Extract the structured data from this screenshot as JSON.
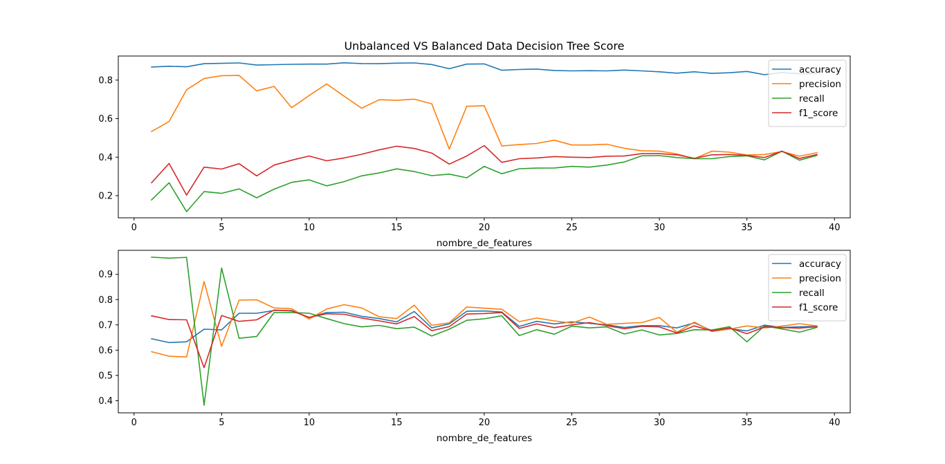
{
  "colors": {
    "accuracy": "#1f77b4",
    "precision": "#ff7f0e",
    "recall": "#2ca02c",
    "f1_score": "#d62728"
  },
  "chart_data": [
    {
      "type": "line",
      "title": "Unbalanced VS Balanced Data Decision Tree Score",
      "xlabel": "nombre_de_features",
      "ylabel": "",
      "xlim": [
        -0.9,
        40.9
      ],
      "ylim": [
        0.085,
        0.925
      ],
      "xticks": [
        0,
        5,
        10,
        15,
        20,
        25,
        30,
        35,
        40
      ],
      "yticks": [
        0.2,
        0.4,
        0.6,
        0.8
      ],
      "ytick_labels": [
        "0.2",
        "0.4",
        "0.6",
        "0.8"
      ],
      "legend_position": "upper right",
      "x": [
        1,
        2,
        3,
        4,
        5,
        6,
        7,
        8,
        9,
        10,
        11,
        12,
        13,
        14,
        15,
        16,
        17,
        18,
        19,
        20,
        21,
        22,
        23,
        24,
        25,
        26,
        27,
        28,
        29,
        30,
        31,
        32,
        33,
        34,
        35,
        36,
        37,
        38,
        39
      ],
      "series": [
        {
          "name": "accuracy",
          "color_key": "accuracy",
          "values": [
            0.868,
            0.872,
            0.869,
            0.885,
            0.887,
            0.889,
            0.878,
            0.88,
            0.882,
            0.883,
            0.883,
            0.89,
            0.886,
            0.885,
            0.888,
            0.889,
            0.881,
            0.859,
            0.883,
            0.884,
            0.851,
            0.855,
            0.857,
            0.85,
            0.848,
            0.849,
            0.848,
            0.852,
            0.848,
            0.843,
            0.836,
            0.843,
            0.835,
            0.838,
            0.845,
            0.828,
            0.839,
            0.833,
            0.834
          ]
        },
        {
          "name": "precision",
          "color_key": "precision",
          "values": [
            0.533,
            0.585,
            0.75,
            0.808,
            0.823,
            0.824,
            0.744,
            0.767,
            0.657,
            0.72,
            0.78,
            0.716,
            0.654,
            0.698,
            0.695,
            0.701,
            0.677,
            0.442,
            0.664,
            0.667,
            0.458,
            0.465,
            0.471,
            0.488,
            0.463,
            0.463,
            0.467,
            0.446,
            0.433,
            0.431,
            0.417,
            0.392,
            0.431,
            0.426,
            0.411,
            0.414,
            0.429,
            0.405,
            0.423
          ]
        },
        {
          "name": "recall",
          "color_key": "recall",
          "values": [
            0.178,
            0.267,
            0.117,
            0.221,
            0.212,
            0.235,
            0.189,
            0.234,
            0.269,
            0.282,
            0.251,
            0.273,
            0.303,
            0.318,
            0.339,
            0.325,
            0.304,
            0.312,
            0.293,
            0.352,
            0.314,
            0.34,
            0.343,
            0.344,
            0.352,
            0.348,
            0.359,
            0.375,
            0.407,
            0.408,
            0.398,
            0.392,
            0.392,
            0.403,
            0.407,
            0.386,
            0.431,
            0.384,
            0.409
          ]
        },
        {
          "name": "f1_score",
          "color_key": "f1_score",
          "values": [
            0.267,
            0.367,
            0.203,
            0.348,
            0.338,
            0.366,
            0.303,
            0.359,
            0.384,
            0.406,
            0.381,
            0.396,
            0.415,
            0.438,
            0.457,
            0.445,
            0.421,
            0.364,
            0.406,
            0.46,
            0.373,
            0.392,
            0.396,
            0.403,
            0.4,
            0.398,
            0.405,
            0.406,
            0.418,
            0.418,
            0.412,
            0.394,
            0.412,
            0.414,
            0.409,
            0.398,
            0.431,
            0.393,
            0.414
          ]
        }
      ]
    },
    {
      "type": "line",
      "title": "",
      "xlabel": "nombre_de_features",
      "ylabel": "",
      "xlim": [
        -0.9,
        40.9
      ],
      "ylim": [
        0.352,
        0.995
      ],
      "xticks": [
        0,
        5,
        10,
        15,
        20,
        25,
        30,
        35,
        40
      ],
      "yticks": [
        0.4,
        0.5,
        0.6,
        0.7,
        0.8,
        0.9
      ],
      "ytick_labels": [
        "0.4",
        "0.5",
        "0.6",
        "0.7",
        "0.8",
        "0.9"
      ],
      "legend_position": "upper right",
      "x": [
        1,
        2,
        3,
        4,
        5,
        6,
        7,
        8,
        9,
        10,
        11,
        12,
        13,
        14,
        15,
        16,
        17,
        18,
        19,
        20,
        21,
        22,
        23,
        24,
        25,
        26,
        27,
        28,
        29,
        30,
        31,
        32,
        33,
        34,
        35,
        36,
        37,
        38,
        39
      ],
      "series": [
        {
          "name": "accuracy",
          "color_key": "accuracy",
          "values": [
            0.645,
            0.63,
            0.633,
            0.683,
            0.68,
            0.746,
            0.746,
            0.757,
            0.757,
            0.729,
            0.749,
            0.75,
            0.734,
            0.725,
            0.712,
            0.753,
            0.688,
            0.704,
            0.754,
            0.755,
            0.751,
            0.694,
            0.714,
            0.704,
            0.712,
            0.706,
            0.7,
            0.69,
            0.697,
            0.697,
            0.688,
            0.708,
            0.677,
            0.685,
            0.676,
            0.699,
            0.69,
            0.692,
            0.694
          ]
        },
        {
          "name": "precision",
          "color_key": "precision",
          "values": [
            0.594,
            0.576,
            0.573,
            0.872,
            0.615,
            0.798,
            0.799,
            0.767,
            0.764,
            0.723,
            0.763,
            0.78,
            0.767,
            0.732,
            0.725,
            0.778,
            0.698,
            0.708,
            0.771,
            0.766,
            0.762,
            0.713,
            0.727,
            0.716,
            0.707,
            0.731,
            0.702,
            0.706,
            0.709,
            0.729,
            0.671,
            0.711,
            0.674,
            0.683,
            0.696,
            0.688,
            0.695,
            0.705,
            0.696
          ]
        },
        {
          "name": "recall",
          "color_key": "recall",
          "values": [
            0.968,
            0.964,
            0.967,
            0.382,
            0.925,
            0.647,
            0.654,
            0.749,
            0.749,
            0.746,
            0.725,
            0.705,
            0.692,
            0.698,
            0.685,
            0.691,
            0.656,
            0.683,
            0.718,
            0.724,
            0.736,
            0.658,
            0.681,
            0.663,
            0.695,
            0.688,
            0.692,
            0.664,
            0.68,
            0.66,
            0.666,
            0.681,
            0.68,
            0.693,
            0.633,
            0.696,
            0.684,
            0.671,
            0.69
          ]
        },
        {
          "name": "f1_score",
          "color_key": "f1_score",
          "values": [
            0.736,
            0.721,
            0.72,
            0.531,
            0.737,
            0.714,
            0.72,
            0.759,
            0.755,
            0.73,
            0.744,
            0.742,
            0.727,
            0.716,
            0.704,
            0.733,
            0.677,
            0.693,
            0.743,
            0.745,
            0.749,
            0.686,
            0.704,
            0.689,
            0.7,
            0.709,
            0.697,
            0.685,
            0.694,
            0.692,
            0.668,
            0.696,
            0.676,
            0.688,
            0.665,
            0.692,
            0.689,
            0.687,
            0.693
          ]
        }
      ]
    }
  ]
}
